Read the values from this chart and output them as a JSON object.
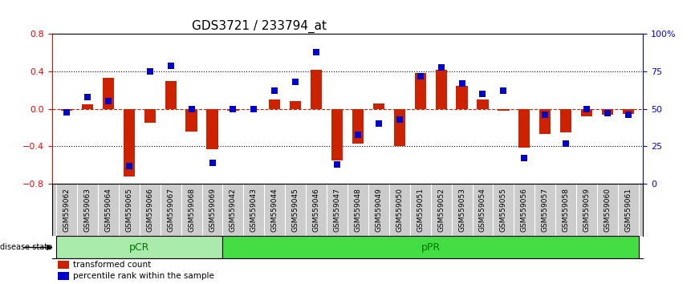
{
  "title": "GDS3721 / 233794_at",
  "samples": [
    "GSM559062",
    "GSM559063",
    "GSM559064",
    "GSM559065",
    "GSM559066",
    "GSM559067",
    "GSM559068",
    "GSM559069",
    "GSM559042",
    "GSM559043",
    "GSM559044",
    "GSM559045",
    "GSM559046",
    "GSM559047",
    "GSM559048",
    "GSM559049",
    "GSM559050",
    "GSM559051",
    "GSM559052",
    "GSM559053",
    "GSM559054",
    "GSM559055",
    "GSM559056",
    "GSM559057",
    "GSM559058",
    "GSM559059",
    "GSM559060",
    "GSM559061"
  ],
  "red_bars": [
    -0.02,
    0.05,
    0.33,
    -0.72,
    -0.15,
    0.3,
    -0.24,
    -0.43,
    -0.02,
    0.0,
    0.1,
    0.08,
    0.42,
    -0.55,
    -0.37,
    0.06,
    -0.4,
    0.38,
    0.42,
    0.25,
    0.1,
    -0.02,
    -0.41,
    -0.27,
    -0.25,
    -0.08,
    -0.06,
    -0.05
  ],
  "blue_dots": [
    48,
    58,
    55,
    12,
    75,
    79,
    50,
    14,
    50,
    50,
    62,
    68,
    88,
    13,
    33,
    40,
    43,
    72,
    78,
    67,
    60,
    62,
    17,
    46,
    27,
    50,
    47,
    46
  ],
  "pCR_count": 8,
  "pPR_count": 20,
  "ylim_left": [
    -0.8,
    0.8
  ],
  "ylim_right": [
    0,
    100
  ],
  "yticks_left": [
    -0.8,
    -0.4,
    0.0,
    0.4,
    0.8
  ],
  "yticks_right": [
    0,
    25,
    50,
    75,
    100
  ],
  "ytick_labels_right": [
    "0",
    "25",
    "50",
    "75",
    "100%"
  ],
  "bar_color": "#cc2200",
  "dot_color": "#0000cc",
  "pCR_color": "#aaeaaa",
  "pPR_color": "#44dd44",
  "group_label_color": "#007700",
  "tick_bg_color": "#cccccc",
  "zero_line_color": "#cc2200",
  "dotted_line_color": "#000000",
  "bg_color": "#ffffff",
  "bar_width": 0.55,
  "dot_size": 40,
  "title_fontsize": 11,
  "tick_fontsize": 6.5,
  "ytick_fontsize": 8
}
